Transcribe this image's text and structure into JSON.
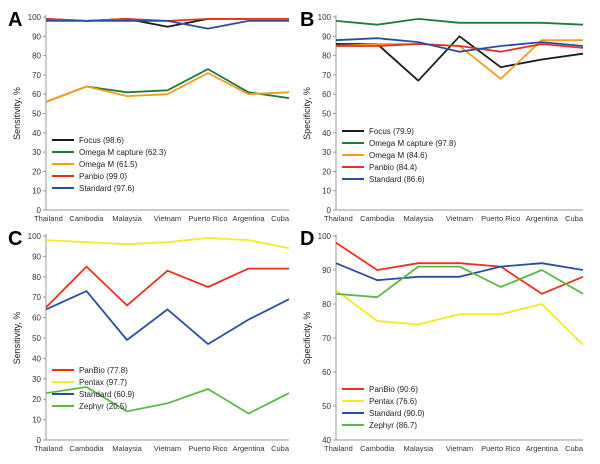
{
  "chart_data": [
    {
      "panel_label": "A",
      "type": "line",
      "ylabel": "Sensitivity, %",
      "ylim": [
        0,
        100
      ],
      "yticks": [
        0,
        10,
        20,
        30,
        40,
        50,
        60,
        70,
        80,
        90,
        100
      ],
      "categories": [
        "Thailand",
        "Cambodia",
        "Malaysia",
        "Vietnam",
        "Puerto Rico",
        "Argentina",
        "Cuba"
      ],
      "legend_position": "bottom-left",
      "series": [
        {
          "name": "Focus (98.6)",
          "color": "#1a1a1a",
          "values": [
            99,
            98,
            99,
            95,
            99,
            99,
            99
          ]
        },
        {
          "name": "Omega M capture (62.3)",
          "color": "#1e7b3a",
          "values": [
            56,
            64,
            61,
            62,
            73,
            61,
            58
          ]
        },
        {
          "name": "Omega M (61.5)",
          "color": "#f39c1f",
          "values": [
            56,
            64,
            59,
            60,
            71,
            60,
            61
          ]
        },
        {
          "name": "Panbio (99.0)",
          "color": "#e8321e",
          "values": [
            99,
            98,
            99,
            98,
            99,
            99,
            99
          ]
        },
        {
          "name": "Standard (97.6)",
          "color": "#2b4ea3",
          "values": [
            98,
            98,
            98,
            98,
            94,
            98,
            98
          ]
        }
      ]
    },
    {
      "panel_label": "B",
      "type": "line",
      "ylabel": "Specificity, %",
      "ylim": [
        0,
        100
      ],
      "yticks": [
        0,
        10,
        20,
        30,
        40,
        50,
        60,
        70,
        80,
        90,
        100
      ],
      "categories": [
        "Thailand",
        "Cambodia",
        "Malaysia",
        "Vietnam",
        "Puerto Rico",
        "Argentina",
        "Cuba"
      ],
      "legend_position": "bottom-left",
      "series": [
        {
          "name": "Focus (79.9)",
          "color": "#1a1a1a",
          "values": [
            86,
            86,
            67,
            90,
            74,
            78,
            81
          ]
        },
        {
          "name": "Omega M capture  (97.8)",
          "color": "#1e7b3a",
          "values": [
            98,
            96,
            99,
            97,
            97,
            97,
            96
          ]
        },
        {
          "name": "Omega M (84.6)",
          "color": "#f39c1f",
          "values": [
            85,
            86,
            86,
            85,
            68,
            88,
            88
          ]
        },
        {
          "name": "Panbio (84.4)",
          "color": "#e8321e",
          "values": [
            85,
            85,
            86,
            85,
            82,
            86,
            84
          ]
        },
        {
          "name": "Standard (86.6)",
          "color": "#2b4ea3",
          "values": [
            88,
            89,
            87,
            82,
            85,
            87,
            85
          ]
        }
      ]
    },
    {
      "panel_label": "C",
      "type": "line",
      "ylabel": "Sensitivity, %",
      "ylim": [
        0,
        100
      ],
      "yticks": [
        0,
        10,
        20,
        30,
        40,
        50,
        60,
        70,
        80,
        90,
        100
      ],
      "categories": [
        "Thailand",
        "Cambodia",
        "Malaysia",
        "Vietnam",
        "Puerto Rico",
        "Argentina",
        "Cuba"
      ],
      "legend_position": "bottom-left",
      "series": [
        {
          "name": "PanBio (77.8)",
          "color": "#e8321e",
          "values": [
            65,
            85,
            66,
            83,
            75,
            84,
            84
          ]
        },
        {
          "name": "Pentax (97.7)",
          "color": "#f2ea23",
          "values": [
            98,
            97,
            96,
            97,
            99,
            98,
            94
          ]
        },
        {
          "name": "Standard (60.9)",
          "color": "#2b4ea3",
          "values": [
            64,
            73,
            49,
            64,
            47,
            59,
            69
          ]
        },
        {
          "name": "Zephyr (20.5)",
          "color": "#5cb845",
          "values": [
            23,
            26,
            14,
            18,
            25,
            13,
            23
          ]
        }
      ]
    },
    {
      "panel_label": "D",
      "type": "line",
      "ylabel": "Specificity, %",
      "ylim": [
        40,
        100
      ],
      "yticks": [
        40,
        50,
        60,
        70,
        80,
        90,
        100
      ],
      "categories": [
        "Thailand",
        "Cambodia",
        "Malaysia",
        "Vietnam",
        "Puerto Rico",
        "Argentina",
        "Cuba"
      ],
      "legend_position": "bottom-left",
      "series": [
        {
          "name": "PanBio (90.6)",
          "color": "#e8321e",
          "values": [
            98,
            90,
            92,
            92,
            91,
            83,
            88
          ]
        },
        {
          "name": "Pentax (76.6)",
          "color": "#f2ea23",
          "values": [
            84,
            75,
            74,
            77,
            77,
            80,
            68
          ]
        },
        {
          "name": "Standard (90.0)",
          "color": "#2b4ea3",
          "values": [
            92,
            87,
            88,
            88,
            91,
            92,
            90
          ]
        },
        {
          "name": "Zephyr (86.7)",
          "color": "#5cb845",
          "values": [
            83,
            82,
            91,
            91,
            85,
            90,
            83
          ]
        }
      ]
    }
  ]
}
